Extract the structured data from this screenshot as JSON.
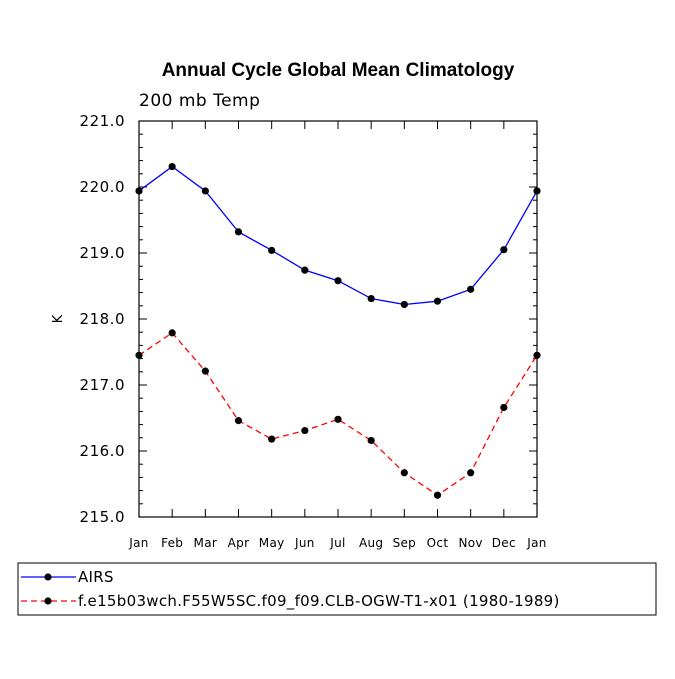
{
  "chart_data": {
    "type": "line",
    "title": "Annual Cycle Global Mean Climatology",
    "subtitle": "200 mb Temp",
    "xlabel": "",
    "ylabel": "K",
    "categories": [
      "Jan",
      "Feb",
      "Mar",
      "Apr",
      "May",
      "Jun",
      "Jul",
      "Aug",
      "Sep",
      "Oct",
      "Nov",
      "Dec",
      "Jan"
    ],
    "ylim": [
      215.0,
      221.0
    ],
    "yticks": [
      "215.0",
      "216.0",
      "217.0",
      "218.0",
      "219.0",
      "220.0",
      "221.0"
    ],
    "grid": false,
    "legend_position": "bottom",
    "series": [
      {
        "name": "AIRS",
        "color": "#0000ff",
        "dash": "solid",
        "marker_color": "#000000",
        "values": [
          219.94,
          220.31,
          219.94,
          219.32,
          219.04,
          218.74,
          218.58,
          218.31,
          218.22,
          218.27,
          218.45,
          219.05,
          219.94
        ]
      },
      {
        "name": "f.e15b03wch.F55W5SC.f09_f09.CLB-OGW-T1-x01 (1980-1989)",
        "color": "#ff0000",
        "dash": "dashed",
        "marker_color": "#000000",
        "values": [
          217.45,
          217.79,
          217.21,
          216.46,
          216.18,
          216.31,
          216.48,
          216.16,
          215.67,
          215.33,
          215.67,
          216.66,
          217.45
        ]
      }
    ]
  }
}
